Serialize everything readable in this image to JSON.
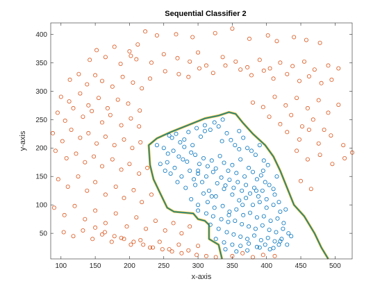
{
  "chart_data": {
    "type": "scatter",
    "title": "Sequential Classifier 2",
    "xlabel": "x-axis",
    "ylabel": "y-axis",
    "xlim": [
      85,
      525
    ],
    "ylim": [
      5,
      420
    ],
    "xticks": [
      100,
      150,
      200,
      250,
      300,
      350,
      400,
      450,
      500
    ],
    "yticks": [
      50,
      100,
      150,
      200,
      250,
      300,
      350,
      400
    ],
    "grid": false,
    "legend": "none",
    "marker": "open-circle",
    "colors": {
      "class_a": "#0072BD",
      "class_b": "#D95319",
      "boundary_outer": "#EDB120",
      "boundary_mid": "#77AC30",
      "boundary_inner": "#0072BD"
    },
    "boundary": [
      [
        335,
        5
      ],
      [
        330,
        30
      ],
      [
        316,
        40
      ],
      [
        316,
        65
      ],
      [
        310,
        72
      ],
      [
        300,
        75
      ],
      [
        293,
        85
      ],
      [
        265,
        88
      ],
      [
        255,
        95
      ],
      [
        245,
        120
      ],
      [
        235,
        145
      ],
      [
        230,
        170
      ],
      [
        228,
        205
      ],
      [
        240,
        217
      ],
      [
        260,
        228
      ],
      [
        285,
        240
      ],
      [
        310,
        252
      ],
      [
        330,
        257
      ],
      [
        345,
        263
      ],
      [
        355,
        260
      ],
      [
        365,
        245
      ],
      [
        380,
        225
      ],
      [
        398,
        205
      ],
      [
        410,
        185
      ],
      [
        420,
        160
      ],
      [
        430,
        130
      ],
      [
        440,
        100
      ],
      [
        455,
        80
      ],
      [
        470,
        50
      ],
      [
        480,
        25
      ],
      [
        490,
        5
      ]
    ],
    "series": [
      {
        "class": "a",
        "x": [
          258,
          262,
          268,
          274,
          280,
          286,
          292,
          298,
          304,
          310,
          318,
          324,
          330,
          336,
          342,
          348,
          354,
          360,
          366,
          372,
          378,
          384,
          390,
          396,
          402,
          250,
          256,
          264,
          272,
          278,
          284,
          290,
          296,
          302,
          308,
          314,
          320,
          326,
          332,
          338,
          344,
          350,
          356,
          362,
          368,
          374,
          380,
          386,
          392,
          398,
          404,
          410,
          245,
          252,
          260,
          266,
          276,
          288,
          294,
          300,
          306,
          312,
          322,
          328,
          334,
          340,
          346,
          352,
          358,
          364,
          370,
          376,
          382,
          388,
          394,
          400,
          412,
          418,
          270,
          282,
          296,
          308,
          316,
          326,
          338,
          350,
          360,
          370,
          380,
          390,
          400,
          410,
          420,
          428,
          290,
          300,
          314,
          324,
          336,
          346,
          356,
          366,
          376,
          386,
          396,
          406,
          416,
          425,
          300,
          312,
          322,
          334,
          344,
          354,
          364,
          374,
          384,
          394,
          404,
          414,
          424,
          432,
          318,
          330,
          342,
          352,
          362,
          372,
          382,
          392,
          402,
          412,
          422,
          436,
          326,
          338,
          350,
          362,
          374,
          386,
          398,
          410,
          420,
          430,
          340,
          356,
          372,
          390,
          405,
          418,
          300,
          320,
          345,
          365,
          385,
          240,
          255,
          280,
          310,
          335,
          360,
          395,
          415
        ],
        "y": [
          222,
          218,
          225,
          210,
          215,
          228,
          205,
          235,
          220,
          240,
          232,
          245,
          238,
          250,
          226,
          214,
          205,
          230,
          218,
          200,
          195,
          188,
          205,
          178,
          170,
          200,
          190,
          195,
          185,
          180,
          176,
          192,
          188,
          172,
          182,
          168,
          178,
          164,
          186,
          174,
          160,
          170,
          156,
          180,
          150,
          165,
          158,
          145,
          152,
          140,
          135,
          128,
          172,
          160,
          155,
          165,
          150,
          160,
          145,
          155,
          140,
          150,
          158,
          138,
          148,
          134,
          144,
          130,
          140,
          125,
          135,
          120,
          130,
          115,
          125,
          110,
          118,
          105,
          140,
          130,
          135,
          120,
          125,
          115,
          128,
          118,
          108,
          112,
          100,
          105,
          95,
          100,
          88,
          92,
          110,
          100,
          105,
          95,
          98,
          88,
          92,
          82,
          86,
          78,
          80,
          72,
          76,
          68,
          90,
          85,
          80,
          75,
          70,
          72,
          66,
          62,
          58,
          64,
          56,
          52,
          58,
          50,
          65,
          58,
          52,
          48,
          44,
          40,
          46,
          38,
          42,
          36,
          40,
          45,
          40,
          34,
          30,
          28,
          32,
          26,
          30,
          24,
          36,
          30,
          22,
          18,
          20,
          25,
          22,
          30,
          160,
          115,
          82,
          100,
          125,
          205,
          175,
          202,
          230,
          212,
          198,
          160,
          150
        ],
        "color": "#0072BD"
      },
      {
        "class": "b",
        "x": [
          223,
          240,
          268,
          292,
          325,
          350,
          375,
          402,
          415,
          440,
          458,
          478,
          152,
          178,
          200,
          212,
          142,
          165,
          187,
          202,
          210,
          232,
          250,
          270,
          288,
          300,
          312,
          336,
          355,
          372,
          390,
          405,
          420,
          438,
          455,
          470,
          490,
          505,
          113,
          126,
          138,
          150,
          160,
          175,
          190,
          205,
          218,
          230,
          252,
          272,
          286,
          302,
          322,
          340,
          362,
          378,
          396,
          410,
          430,
          448,
          462,
          480,
          495,
          100,
          112,
          128,
          140,
          155,
          168,
          183,
          198,
          215,
          380,
          395,
          412,
          428,
          444,
          460,
          476,
          490,
          505,
          95,
          106,
          118,
          132,
          145,
          160,
          172,
          188,
          202,
          214,
          404,
          420,
          436,
          452,
          468,
          484,
          88,
          102,
          115,
          128,
          140,
          152,
          165,
          178,
          192,
          204,
          216,
          430,
          448,
          462,
          476,
          494,
          512,
          525,
          92,
          108,
          122,
          135,
          148,
          160,
          175,
          188,
          200,
          214,
          226,
          444,
          460,
          478,
          496,
          514,
          96,
          110,
          125,
          138,
          150,
          165,
          180,
          192,
          206,
          218,
          232,
          450,
          465,
          90,
          105,
          120,
          135,
          150,
          165,
          180,
          196,
          210,
          224,
          238,
          252,
          264,
          276,
          288,
          104,
          118,
          132,
          146,
          160,
          174,
          188,
          202,
          216,
          230,
          244,
          258,
          272,
          286,
          300,
          150,
          164,
          178,
          192,
          206,
          220,
          234,
          248,
          262,
          276,
          298,
          312,
          326,
          350,
          365,
          380,
          395,
          412
        ],
        "y": [
          405,
          398,
          400,
          395,
          402,
          410,
          392,
          398,
          388,
          395,
          390,
          385,
          372,
          378,
          370,
          382,
          355,
          360,
          348,
          362,
          356,
          350,
          365,
          358,
          352,
          368,
          345,
          360,
          352,
          342,
          355,
          340,
          350,
          344,
          352,
          338,
          345,
          340,
          320,
          330,
          312,
          328,
          318,
          308,
          325,
          315,
          305,
          322,
          335,
          330,
          325,
          340,
          332,
          345,
          338,
          328,
          336,
          322,
          330,
          318,
          326,
          314,
          320,
          290,
          282,
          296,
          275,
          288,
          270,
          285,
          278,
          266,
          280,
          272,
          290,
          275,
          288,
          270,
          284,
          262,
          276,
          262,
          248,
          270,
          255,
          265,
          245,
          258,
          240,
          252,
          238,
          255,
          242,
          258,
          238,
          250,
          232,
          226,
          212,
          232,
          218,
          226,
          208,
          220,
          205,
          215,
          200,
          210,
          228,
          215,
          232,
          208,
          222,
          205,
          192,
          195,
          182,
          190,
          175,
          185,
          168,
          180,
          162,
          172,
          155,
          165,
          195,
          180,
          188,
          172,
          182,
          145,
          132,
          150,
          125,
          140,
          118,
          132,
          112,
          126,
          105,
          118,
          142,
          128,
          95,
          82,
          98,
          75,
          90,
          68,
          85,
          62,
          78,
          58,
          72,
          55,
          68,
          50,
          62,
          52,
          45,
          55,
          40,
          48,
          35,
          42,
          30,
          38,
          25,
          35,
          22,
          30,
          20,
          28,
          60,
          52,
          45,
          40,
          35,
          30,
          25,
          22,
          18,
          15,
          12,
          10,
          8,
          10,
          15,
          8,
          12,
          10
        ],
        "color": "#D95319"
      }
    ]
  }
}
